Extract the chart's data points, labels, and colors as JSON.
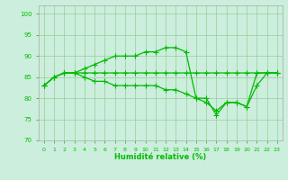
{
  "xlabel": "Humidité relative (%)",
  "x": [
    0,
    1,
    2,
    3,
    4,
    5,
    6,
    7,
    8,
    9,
    10,
    11,
    12,
    13,
    14,
    15,
    16,
    17,
    18,
    19,
    20,
    21,
    22,
    23
  ],
  "line1": [
    83,
    85,
    86,
    86,
    87,
    88,
    89,
    90,
    90,
    90,
    91,
    91,
    92,
    92,
    91,
    80,
    80,
    76,
    79,
    79,
    78,
    86,
    86,
    86
  ],
  "line2": [
    83,
    85,
    86,
    86,
    86,
    86,
    86,
    86,
    86,
    86,
    86,
    86,
    86,
    86,
    86,
    86,
    86,
    86,
    86,
    86,
    86,
    86,
    86,
    86
  ],
  "line3": [
    83,
    85,
    86,
    86,
    85,
    84,
    84,
    83,
    83,
    83,
    83,
    83,
    82,
    82,
    81,
    80,
    79,
    77,
    79,
    79,
    78,
    83,
    86,
    86
  ],
  "line_color": "#00bb00",
  "bg_color": "#cceedd",
  "grid_color": "#99cc99",
  "xlim": [
    -0.5,
    23.5
  ],
  "ylim": [
    70,
    102
  ],
  "yticks": [
    70,
    75,
    80,
    85,
    90,
    95,
    100
  ],
  "xticks": [
    0,
    1,
    2,
    3,
    4,
    5,
    6,
    7,
    8,
    9,
    10,
    11,
    12,
    13,
    14,
    15,
    16,
    17,
    18,
    19,
    20,
    21,
    22,
    23
  ]
}
